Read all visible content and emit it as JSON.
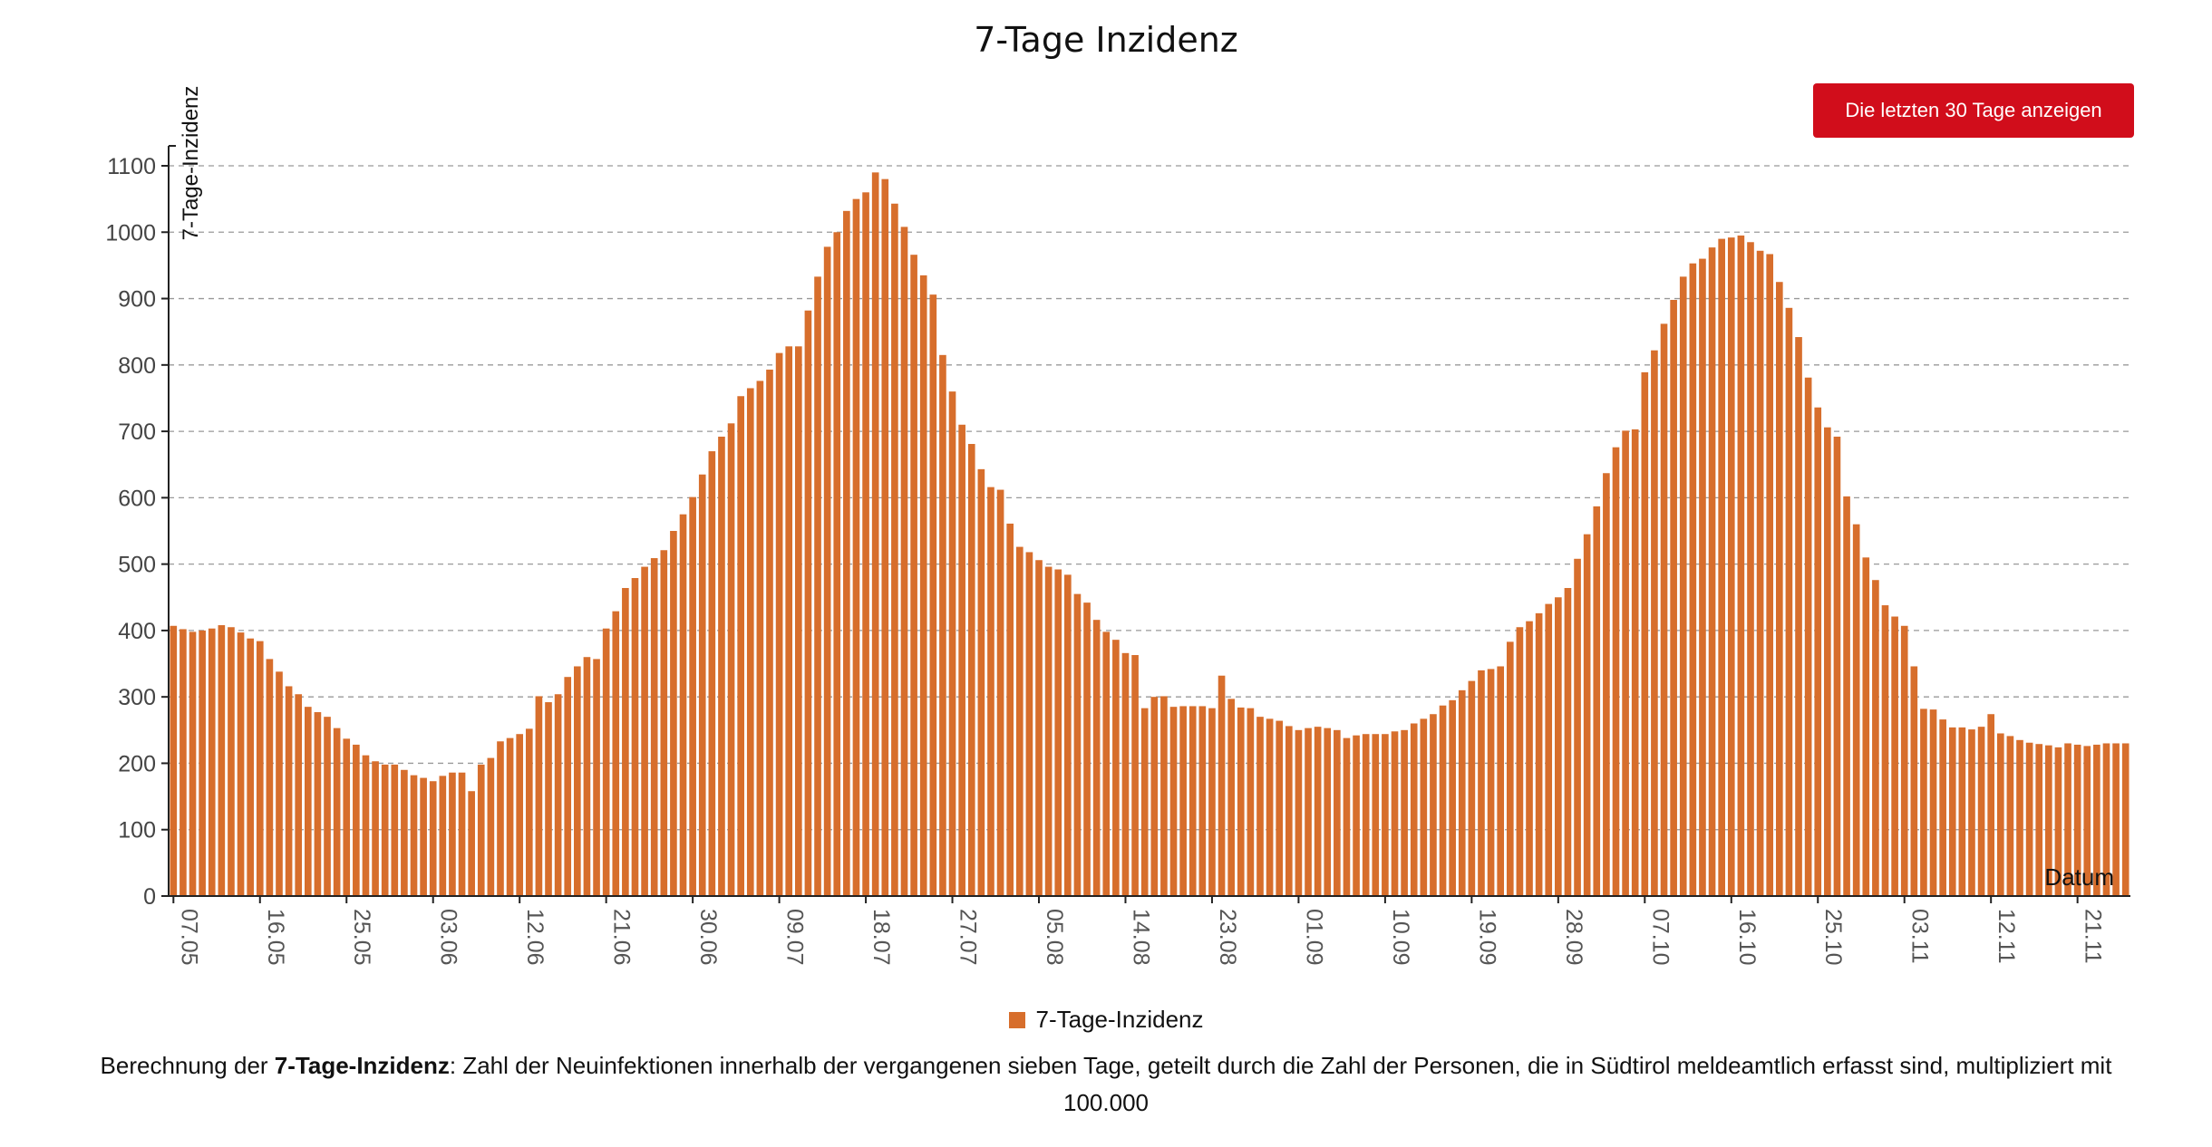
{
  "title": "7-Tage Inzidenz",
  "button_label": "Die letzten 30 Tage anzeigen",
  "accent_color": "#d10d1b",
  "legend": {
    "label": "7-Tage-Inzidenz",
    "color": "#d76e2c"
  },
  "note": {
    "prefix": "Berechnung der ",
    "bold": "7-Tage-Inzidenz",
    "suffix": ": Zahl der Neuinfektionen innerhalb der vergangenen sieben Tage, geteilt durch die Zahl der Personen, die in Südtirol meldeamtlich erfasst sind, multipliziert mit 100.000"
  },
  "chart_data": {
    "type": "bar",
    "series": [
      {
        "name": "7-Tage-Inzidenz",
        "color": "#d76e2c",
        "values": [
          407,
          402,
          398,
          400,
          403,
          408,
          405,
          397,
          388,
          384,
          357,
          338,
          316,
          304,
          285,
          277,
          270,
          253,
          237,
          228,
          212,
          203,
          198,
          198,
          190,
          182,
          178,
          173,
          181,
          186,
          186,
          158,
          198,
          208,
          233,
          238,
          244,
          252,
          301,
          292,
          304,
          330,
          346,
          360,
          357,
          403,
          429,
          464,
          479,
          496,
          509,
          521,
          550,
          575,
          601,
          635,
          670,
          692,
          712,
          753,
          765,
          776,
          793,
          818,
          828,
          828,
          882,
          933,
          978,
          1000,
          1032,
          1050,
          1060,
          1090,
          1080,
          1043,
          1008,
          966,
          935,
          906,
          815,
          760,
          710,
          681,
          643,
          616,
          612,
          561,
          526,
          518,
          506,
          496,
          492,
          484,
          455,
          442,
          416,
          398,
          386,
          366,
          363,
          283,
          300,
          301,
          285,
          286,
          286,
          286,
          283,
          332,
          297,
          284,
          283,
          270,
          267,
          264,
          256,
          250,
          253,
          255,
          253,
          250,
          238,
          242,
          244,
          244,
          244,
          248,
          250,
          260,
          267,
          274,
          287,
          295,
          310,
          324,
          340,
          342,
          346,
          383,
          405,
          414,
          426,
          440,
          450,
          464,
          508,
          545,
          587,
          637,
          676,
          701,
          703,
          789,
          822,
          862,
          898,
          933,
          953,
          960,
          977,
          990,
          992,
          995,
          985,
          972,
          967,
          925,
          886,
          842,
          781,
          736,
          706,
          692,
          602,
          560,
          510,
          476,
          438,
          421,
          407,
          346,
          282,
          281,
          266,
          254,
          254,
          251,
          255,
          274,
          245,
          241,
          235,
          231,
          229,
          227,
          224,
          230,
          228,
          226,
          228,
          230,
          230,
          230
        ]
      }
    ],
    "x_tick_labels": [
      "07.05",
      "16.05",
      "25.05",
      "03.06",
      "12.06",
      "21.06",
      "30.06",
      "09.07",
      "18.07",
      "27.07",
      "05.08",
      "14.08",
      "23.08",
      "01.09",
      "10.09",
      "19.09",
      "28.09",
      "07.10",
      "16.10",
      "25.10",
      "03.11",
      "12.11",
      "21.11"
    ],
    "x_tick_every_days": 9,
    "xlabel": "Datum",
    "ylabel": "7-Tage-Inzidenz",
    "ylim": [
      0,
      1100
    ],
    "yticks": [
      0,
      100,
      200,
      300,
      400,
      500,
      600,
      700,
      800,
      900,
      1000,
      1100
    ],
    "grid": "horizontal dashed"
  }
}
